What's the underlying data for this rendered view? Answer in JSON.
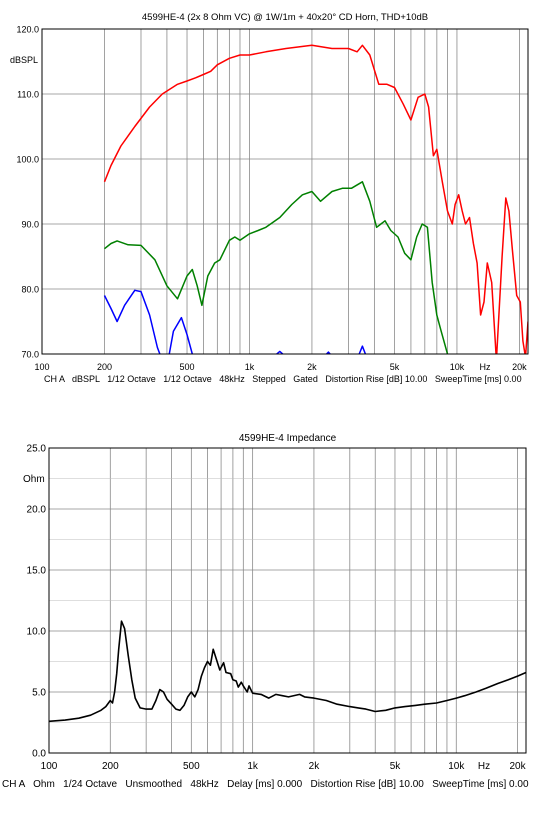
{
  "chart_data": [
    {
      "type": "line",
      "title": "4599HE-4 (2x 8 Ohm VC) @ 1W/1m + 40x20° CD Horn, THD+10dB",
      "ylabel": "dBSPL",
      "xunit": "Hz",
      "xscale": "log",
      "xlim": [
        100,
        22000
      ],
      "ylim": [
        70,
        120
      ],
      "yticks": [
        "120.0",
        "110.0",
        "100.0",
        "90.0",
        "80.0",
        "70.0"
      ],
      "ytick_values": [
        120,
        110,
        100,
        90,
        80,
        70
      ],
      "xticks": [
        "100",
        "200",
        "500",
        "1k",
        "2k",
        "5k",
        "10k",
        "20k"
      ],
      "xtick_values": [
        100,
        200,
        500,
        1000,
        2000,
        5000,
        10000,
        20000
      ],
      "footer": "CH A   dBSPL   1/12 Octave   1/12 Octave   48kHz   Stepped   Gated   Distortion Rise [dB] 10.00   SweepTime [ms] 0.00",
      "grid": true,
      "series": [
        {
          "color": "#ff0000",
          "points": [
            [
              200,
              96.5
            ],
            [
              215,
              99
            ],
            [
              240,
              102
            ],
            [
              280,
              105
            ],
            [
              330,
              108
            ],
            [
              380,
              110
            ],
            [
              450,
              111.5
            ],
            [
              500,
              112
            ],
            [
              550,
              112.5
            ],
            [
              600,
              113
            ],
            [
              650,
              113.5
            ],
            [
              700,
              114.5
            ],
            [
              800,
              115.5
            ],
            [
              900,
              116
            ],
            [
              1000,
              116
            ],
            [
              1200,
              116.5
            ],
            [
              1500,
              117
            ],
            [
              2000,
              117.5
            ],
            [
              2500,
              117
            ],
            [
              3000,
              117
            ],
            [
              3300,
              116.5
            ],
            [
              3500,
              117.5
            ],
            [
              3800,
              116
            ],
            [
              4200,
              111.5
            ],
            [
              4600,
              111.5
            ],
            [
              5000,
              111
            ],
            [
              5500,
              108.5
            ],
            [
              6000,
              106
            ],
            [
              6500,
              109.5
            ],
            [
              7000,
              110
            ],
            [
              7300,
              108
            ],
            [
              7700,
              100.5
            ],
            [
              8000,
              101.5
            ],
            [
              8500,
              96.5
            ],
            [
              9000,
              92
            ],
            [
              9500,
              90
            ],
            [
              9800,
              93
            ],
            [
              10200,
              94.5
            ],
            [
              10600,
              92
            ],
            [
              11000,
              90
            ],
            [
              11500,
              91
            ],
            [
              12000,
              87
            ],
            [
              12500,
              84
            ],
            [
              13000,
              76
            ],
            [
              13500,
              78
            ],
            [
              14000,
              84
            ],
            [
              14700,
              81
            ],
            [
              15500,
              69
            ],
            [
              16500,
              85
            ],
            [
              17200,
              94
            ],
            [
              17800,
              92
            ],
            [
              18500,
              86
            ],
            [
              19400,
              79
            ],
            [
              20200,
              78
            ],
            [
              20800,
              72
            ],
            [
              21400,
              69.5
            ],
            [
              22000,
              75
            ]
          ]
        },
        {
          "color": "#008000",
          "points": [
            [
              200,
              86.2
            ],
            [
              215,
              87.0
            ],
            [
              230,
              87.4
            ],
            [
              260,
              86.8
            ],
            [
              300,
              86.7
            ],
            [
              350,
              84.5
            ],
            [
              400,
              80.5
            ],
            [
              450,
              78.5
            ],
            [
              500,
              82
            ],
            [
              530,
              83
            ],
            [
              560,
              80.5
            ],
            [
              590,
              77.5
            ],
            [
              630,
              82
            ],
            [
              680,
              84
            ],
            [
              720,
              84.5
            ],
            [
              800,
              87.5
            ],
            [
              850,
              88
            ],
            [
              900,
              87.5
            ],
            [
              1000,
              88.5
            ],
            [
              1100,
              89
            ],
            [
              1200,
              89.5
            ],
            [
              1400,
              91
            ],
            [
              1600,
              93
            ],
            [
              1800,
              94.5
            ],
            [
              2000,
              95
            ],
            [
              2200,
              93.5
            ],
            [
              2500,
              95
            ],
            [
              2800,
              95.5
            ],
            [
              3100,
              95.5
            ],
            [
              3500,
              96.5
            ],
            [
              3800,
              93.5
            ],
            [
              4100,
              89.5
            ],
            [
              4500,
              90.5
            ],
            [
              4800,
              89
            ],
            [
              5200,
              88
            ],
            [
              5600,
              85.5
            ],
            [
              6000,
              84.5
            ],
            [
              6400,
              88
            ],
            [
              6800,
              90
            ],
            [
              7200,
              89.5
            ],
            [
              7600,
              81
            ],
            [
              8000,
              76
            ],
            [
              8400,
              73.5
            ],
            [
              9000,
              70
            ]
          ]
        },
        {
          "color": "#0000ff",
          "points": [
            [
              200,
              79
            ],
            [
              215,
              77
            ],
            [
              230,
              75
            ],
            [
              250,
              77.5
            ],
            [
              280,
              79.8
            ],
            [
              300,
              79.6
            ],
            [
              330,
              76
            ],
            [
              360,
              71
            ],
            [
              380,
              69
            ],
            [
              400,
              68
            ],
            [
              430,
              73.5
            ],
            [
              470,
              75.6
            ],
            [
              500,
              73
            ],
            [
              530,
              70
            ]
          ]
        },
        {
          "color": "#0000ff",
          "points": [
            [
              1330,
              69.8
            ],
            [
              1400,
              70.4
            ],
            [
              1470,
              69.8
            ]
          ]
        },
        {
          "color": "#0000ff",
          "points": [
            [
              2320,
              69.8
            ],
            [
              2400,
              70.3
            ],
            [
              2480,
              69.8
            ]
          ]
        },
        {
          "color": "#0000ff",
          "points": [
            [
              3380,
              70
            ],
            [
              3500,
              71.2
            ],
            [
              3620,
              70
            ]
          ]
        }
      ]
    },
    {
      "type": "line",
      "title": "4599HE-4 Impedance",
      "ylabel": "Ohm",
      "xunit": "Hz",
      "xscale": "log",
      "xlim": [
        100,
        22000
      ],
      "ylim": [
        0,
        25
      ],
      "yticks": [
        "25.0",
        "20.0",
        "15.0",
        "10.0",
        "5.0",
        "0.0"
      ],
      "ytick_values": [
        25,
        20,
        15,
        10,
        5,
        0
      ],
      "xticks": [
        "100",
        "200",
        "500",
        "1k",
        "2k",
        "5k",
        "10k",
        "20k"
      ],
      "xtick_values": [
        100,
        200,
        500,
        1000,
        2000,
        5000,
        10000,
        20000
      ],
      "footer": "CH A   Ohm   1/24 Octave   Unsmoothed   48kHz   Delay [ms] 0.000   Distortion Rise [dB] 10.00   SweepTime [ms] 0.00",
      "grid": true,
      "series": [
        {
          "color": "#000000",
          "points": [
            [
              100,
              2.6
            ],
            [
              120,
              2.7
            ],
            [
              140,
              2.85
            ],
            [
              160,
              3.1
            ],
            [
              180,
              3.5
            ],
            [
              190,
              3.8
            ],
            [
              200,
              4.3
            ],
            [
              205,
              4.1
            ],
            [
              210,
              5.0
            ],
            [
              215,
              6.5
            ],
            [
              220,
              8.5
            ],
            [
              227,
              10.8
            ],
            [
              235,
              10.2
            ],
            [
              245,
              8.0
            ],
            [
              255,
              6.0
            ],
            [
              265,
              4.5
            ],
            [
              280,
              3.7
            ],
            [
              300,
              3.6
            ],
            [
              320,
              3.6
            ],
            [
              335,
              4.3
            ],
            [
              350,
              5.2
            ],
            [
              365,
              5.0
            ],
            [
              380,
              4.4
            ],
            [
              400,
              4.0
            ],
            [
              420,
              3.6
            ],
            [
              440,
              3.5
            ],
            [
              460,
              3.9
            ],
            [
              480,
              4.6
            ],
            [
              500,
              5.0
            ],
            [
              520,
              4.6
            ],
            [
              540,
              5.2
            ],
            [
              560,
              6.3
            ],
            [
              580,
              7.0
            ],
            [
              600,
              7.5
            ],
            [
              620,
              7.2
            ],
            [
              640,
              8.5
            ],
            [
              660,
              7.8
            ],
            [
              690,
              6.8
            ],
            [
              720,
              7.4
            ],
            [
              740,
              6.6
            ],
            [
              780,
              6.5
            ],
            [
              800,
              6.0
            ],
            [
              830,
              5.9
            ],
            [
              850,
              5.4
            ],
            [
              880,
              5.8
            ],
            [
              900,
              5.5
            ],
            [
              940,
              5.0
            ],
            [
              960,
              5.5
            ],
            [
              1000,
              4.9
            ],
            [
              1100,
              4.8
            ],
            [
              1200,
              4.5
            ],
            [
              1300,
              4.8
            ],
            [
              1400,
              4.7
            ],
            [
              1500,
              4.6
            ],
            [
              1700,
              4.8
            ],
            [
              1800,
              4.6
            ],
            [
              2000,
              4.5
            ],
            [
              2300,
              4.3
            ],
            [
              2600,
              4.0
            ],
            [
              3000,
              3.8
            ],
            [
              3300,
              3.7
            ],
            [
              3600,
              3.6
            ],
            [
              4000,
              3.4
            ],
            [
              4500,
              3.5
            ],
            [
              5000,
              3.7
            ],
            [
              5600,
              3.8
            ],
            [
              6300,
              3.9
            ],
            [
              7000,
              4.0
            ],
            [
              8000,
              4.1
            ],
            [
              9000,
              4.3
            ],
            [
              10000,
              4.5
            ],
            [
              11000,
              4.7
            ],
            [
              12500,
              5.0
            ],
            [
              14000,
              5.3
            ],
            [
              16000,
              5.7
            ],
            [
              18000,
              6.0
            ],
            [
              20000,
              6.3
            ],
            [
              22000,
              6.6
            ]
          ]
        }
      ]
    }
  ]
}
